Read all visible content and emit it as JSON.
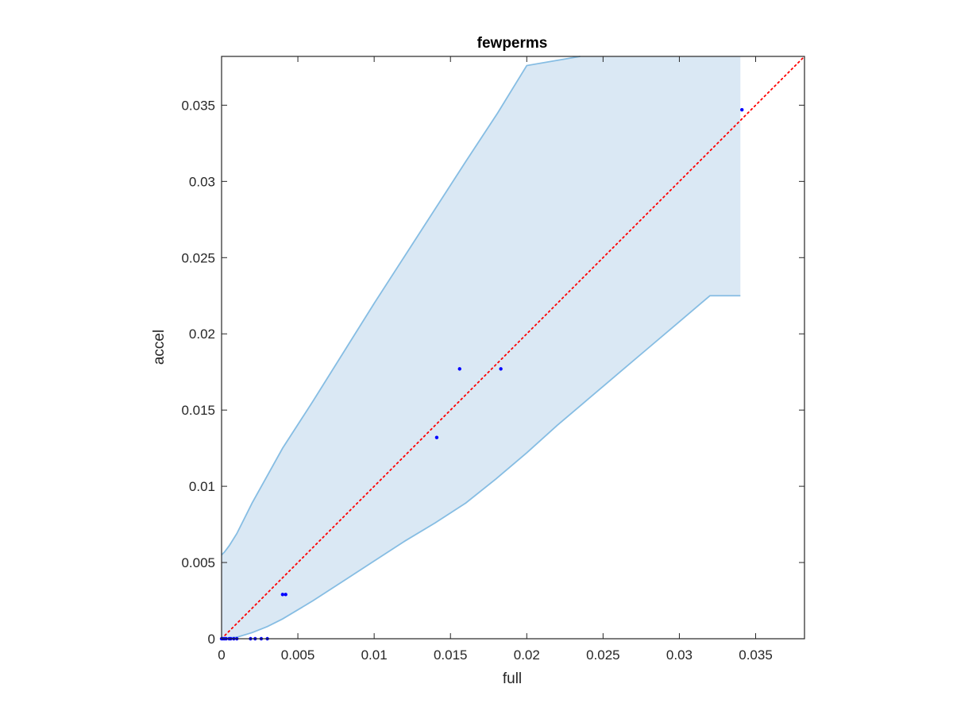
{
  "chart_data": {
    "type": "scatter",
    "title": "fewperms",
    "xlabel": "full",
    "ylabel": "accel",
    "xlim": [
      0,
      0.0382
    ],
    "ylim": [
      0,
      0.0382
    ],
    "xticks": [
      0,
      0.005,
      0.01,
      0.015,
      0.02,
      0.025,
      0.03,
      0.035
    ],
    "yticks": [
      0,
      0.005,
      0.01,
      0.015,
      0.02,
      0.025,
      0.03,
      0.035
    ],
    "xtick_labels": [
      "0",
      "0.005",
      "0.01",
      "0.015",
      "0.02",
      "0.025",
      "0.03",
      "0.035"
    ],
    "ytick_labels": [
      "0",
      "0.005",
      "0.01",
      "0.015",
      "0.02",
      "0.025",
      "0.03",
      "0.035"
    ],
    "grid": false,
    "colors": {
      "band_fill": "#dae8f4",
      "band_edge": "#86bde3",
      "points": "#0000ff",
      "diagonal": "#ff0000"
    },
    "confidence_band": {
      "upper": [
        [
          0,
          0.0055
        ],
        [
          0.0002,
          0.0057
        ],
        [
          0.0005,
          0.0061
        ],
        [
          0.001,
          0.0069
        ],
        [
          0.002,
          0.0089
        ],
        [
          0.003,
          0.0107
        ],
        [
          0.004,
          0.0125
        ],
        [
          0.006,
          0.0156
        ],
        [
          0.008,
          0.0188
        ],
        [
          0.01,
          0.022
        ],
        [
          0.012,
          0.0251
        ],
        [
          0.014,
          0.0282
        ],
        [
          0.016,
          0.0313
        ],
        [
          0.0181,
          0.0345
        ],
        [
          0.02,
          0.0376
        ],
        [
          0.0235,
          0.0382
        ]
      ],
      "lower": [
        [
          0,
          0
        ],
        [
          0.001,
          0.0001
        ],
        [
          0.002,
          0.0004
        ],
        [
          0.003,
          0.0008
        ],
        [
          0.004,
          0.0013
        ],
        [
          0.006,
          0.0025
        ],
        [
          0.008,
          0.0038
        ],
        [
          0.01,
          0.0051
        ],
        [
          0.012,
          0.0064
        ],
        [
          0.014,
          0.0076
        ],
        [
          0.016,
          0.0089
        ],
        [
          0.018,
          0.0105
        ],
        [
          0.02,
          0.0122
        ],
        [
          0.022,
          0.014
        ],
        [
          0.024,
          0.0157
        ],
        [
          0.026,
          0.0174
        ],
        [
          0.028,
          0.0191
        ],
        [
          0.03,
          0.0208
        ],
        [
          0.032,
          0.0225
        ],
        [
          0.034,
          0.0225
        ]
      ],
      "right_edge_x": 0.034
    },
    "points": {
      "x": [
        0,
        0.0001,
        0.0002,
        0.0003,
        0.0005,
        0.0006,
        0.0008,
        0.001,
        0.0019,
        0.0022,
        0.0026,
        0.003,
        0.004,
        0.0042,
        0.0141,
        0.0156,
        0.0183,
        0.0341
      ],
      "y": [
        0,
        0,
        0,
        0,
        0,
        0,
        0,
        0,
        0,
        0,
        0,
        0,
        0.0029,
        0.0029,
        0.0132,
        0.0177,
        0.0177,
        0.0347
      ]
    },
    "reference_line": {
      "style": "dotted",
      "x": [
        0,
        0.0382
      ],
      "y": [
        0,
        0.0382
      ]
    }
  }
}
